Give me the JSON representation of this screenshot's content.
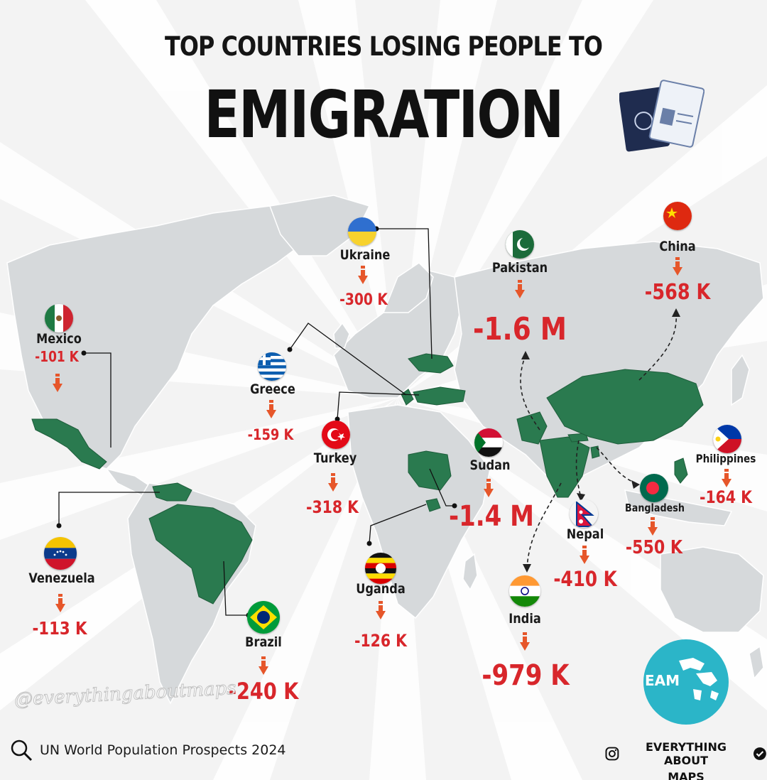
{
  "title": {
    "line1": "TOP COUNTRIES LOSING PEOPLE TO",
    "line2": "EMIGRATION"
  },
  "colors": {
    "land": "#d6d9db",
    "highlight": "#2a7a4f",
    "value_red": "#d8262b",
    "arrow_orange": "#e6562a",
    "logo_teal": "#2bb5c8"
  },
  "countries": [
    {
      "id": "ukraine",
      "name": "Ukraine",
      "value": "-300 K",
      "flag": "ukraine-flag-icon"
    },
    {
      "id": "pakistan",
      "name": "Pakistan",
      "value": "-1.6 M",
      "flag": "pakistan-flag-icon"
    },
    {
      "id": "china",
      "name": "China",
      "value": "-568 K",
      "flag": "china-flag-icon"
    },
    {
      "id": "mexico",
      "name": "Mexico",
      "value": "-101 K",
      "flag": "mexico-flag-icon"
    },
    {
      "id": "greece",
      "name": "Greece",
      "value": "-159 K",
      "flag": "greece-flag-icon"
    },
    {
      "id": "turkey",
      "name": "Turkey",
      "value": "-318 K",
      "flag": "turkey-flag-icon"
    },
    {
      "id": "sudan",
      "name": "Sudan",
      "value": "-1.4 M",
      "flag": "sudan-flag-icon"
    },
    {
      "id": "philippines",
      "name": "Philippines",
      "value": "-164 K",
      "flag": "philippines-flag-icon"
    },
    {
      "id": "bangladesh",
      "name": "Bangladesh",
      "value": "-550 K",
      "flag": "bangladesh-flag-icon"
    },
    {
      "id": "nepal",
      "name": "Nepal",
      "value": "-410 K",
      "flag": "nepal-flag-icon"
    },
    {
      "id": "venezuela",
      "name": "Venezuela",
      "value": "-113 K",
      "flag": "venezuela-flag-icon"
    },
    {
      "id": "uganda",
      "name": "Uganda",
      "value": "-126 K",
      "flag": "uganda-flag-icon"
    },
    {
      "id": "india",
      "name": "India",
      "value": "-979 K",
      "flag": "india-flag-icon"
    },
    {
      "id": "brazil",
      "name": "Brazil",
      "value": "-240 K",
      "flag": "brazil-flag-icon"
    }
  ],
  "source": {
    "icon": "search-icon",
    "text": "UN World Population Prospects 2024"
  },
  "branding": {
    "watermark": "@everythingaboutmaps",
    "logo_text": "EAM",
    "handle_line1": "EVERYTHING ABOUT",
    "handle_line2": "MAPS",
    "icons": [
      "instagram-icon",
      "verified-badge-icon",
      "passport-icon",
      "globe-icon"
    ]
  }
}
